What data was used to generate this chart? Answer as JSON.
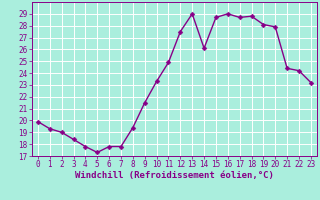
{
  "x": [
    0,
    1,
    2,
    3,
    4,
    5,
    6,
    7,
    8,
    9,
    10,
    11,
    12,
    13,
    14,
    15,
    16,
    17,
    18,
    19,
    20,
    21,
    22,
    23
  ],
  "y": [
    19.9,
    19.3,
    19.0,
    18.4,
    17.8,
    17.3,
    17.8,
    17.8,
    19.4,
    21.5,
    23.3,
    24.9,
    27.5,
    29.0,
    26.1,
    28.7,
    29.0,
    28.7,
    28.8,
    28.1,
    27.9,
    24.4,
    24.2,
    23.2
  ],
  "line_color": "#880088",
  "marker": "D",
  "marker_size": 2.5,
  "bg_color": "#aaeedd",
  "grid_color": "#ffffff",
  "xlabel": "Windchill (Refroidissement éolien,°C)",
  "ylim": [
    17,
    30
  ],
  "xlim": [
    -0.5,
    23.5
  ],
  "yticks": [
    17,
    18,
    19,
    20,
    21,
    22,
    23,
    24,
    25,
    26,
    27,
    28,
    29
  ],
  "xticks": [
    0,
    1,
    2,
    3,
    4,
    5,
    6,
    7,
    8,
    9,
    10,
    11,
    12,
    13,
    14,
    15,
    16,
    17,
    18,
    19,
    20,
    21,
    22,
    23
  ],
  "tick_color": "#880088",
  "tick_fontsize": 5.5,
  "xlabel_fontsize": 6.5,
  "linewidth": 1.0
}
